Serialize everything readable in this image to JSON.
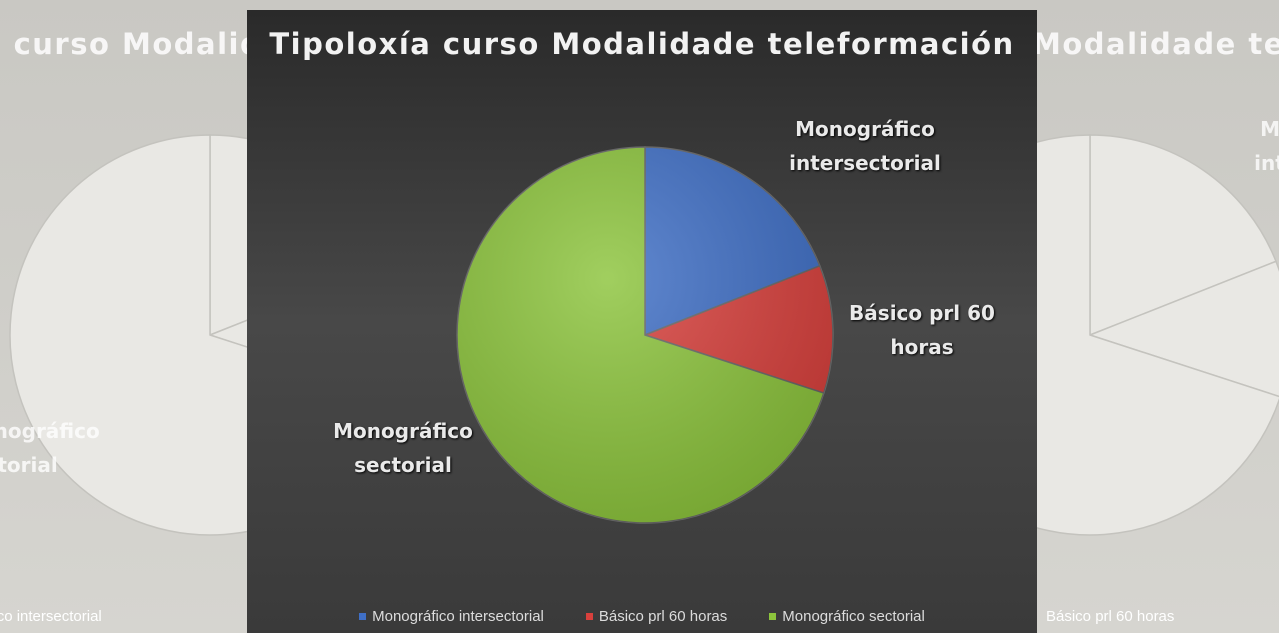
{
  "chart_data": {
    "type": "pie",
    "title": "Tipoloxía curso Modalidade teleformación",
    "categories": [
      "Monográfico intersectorial",
      "Básico prl 60 horas",
      "Monográfico sectorial"
    ],
    "values": [
      19,
      11,
      70
    ],
    "colors": [
      "#3f6fc6",
      "#d8403c",
      "#8cc43c"
    ],
    "legend": "bottom"
  }
}
